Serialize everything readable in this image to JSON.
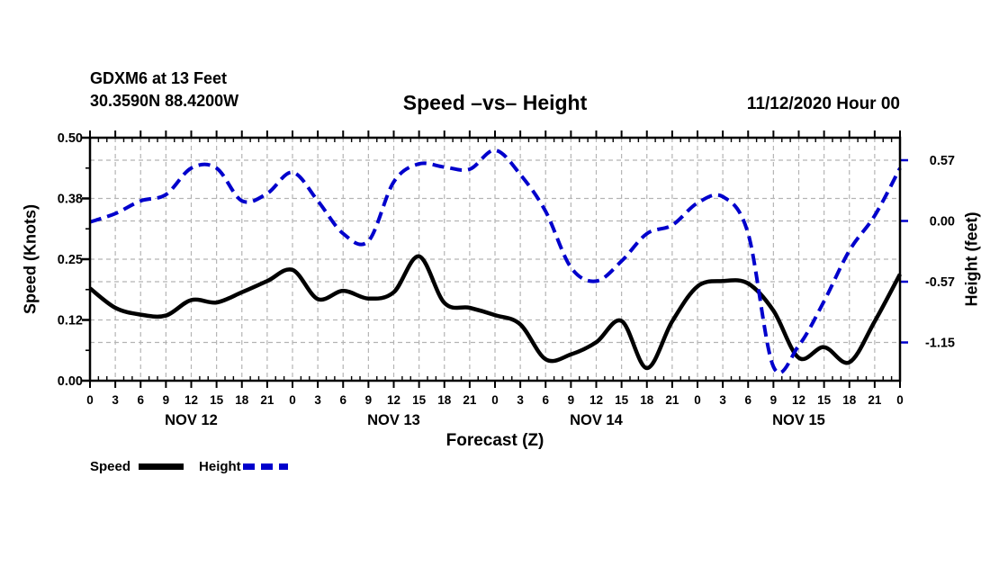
{
  "header": {
    "station_line1": "GDXM6 at 13 Feet",
    "station_line2": "30.3590N 88.4200W",
    "title": "Speed –vs– Height",
    "datetime": "11/12/2020 Hour 00"
  },
  "colors": {
    "speed_line": "#000000",
    "height_line": "#0000cc",
    "gridline": "#b4b4b4",
    "axis": "#000000"
  },
  "chart_data": {
    "type": "line",
    "title": "Speed –vs– Height",
    "x_label": "Forecast (Z)",
    "xlim": [
      0,
      96
    ],
    "x_tick_step": 3,
    "x_minor_step": 1,
    "grid": true,
    "legend_position": "bottom-left",
    "x_hours": [
      0,
      3,
      6,
      9,
      12,
      15,
      18,
      21,
      24,
      27,
      30,
      33,
      36,
      39,
      42,
      45,
      48,
      51,
      54,
      57,
      60,
      63,
      66,
      69,
      72,
      75,
      78,
      81,
      84,
      87,
      90,
      93,
      96
    ],
    "x_tick_labels": [
      "0",
      "3",
      "6",
      "9",
      "12",
      "15",
      "18",
      "21",
      "0",
      "3",
      "6",
      "9",
      "12",
      "15",
      "18",
      "21",
      "0",
      "3",
      "6",
      "9",
      "12",
      "15",
      "18",
      "21",
      "0",
      "3",
      "6",
      "9",
      "12",
      "15",
      "18",
      "21",
      "0"
    ],
    "day_labels": [
      {
        "text": "NOV 12",
        "hour": 12
      },
      {
        "text": "NOV 13",
        "hour": 36
      },
      {
        "text": "NOV 14",
        "hour": 60
      },
      {
        "text": "NOV 15",
        "hour": 84
      }
    ],
    "left_axis": {
      "label": "Speed (Knots)",
      "ylim": [
        0,
        0.5
      ],
      "tick_values": [
        0.5,
        0.375,
        0.25,
        0.125,
        0
      ],
      "tick_labels": [
        "0.50",
        "0.38",
        "0.25",
        "0.12",
        "0.00"
      ],
      "minor_tick_values": [
        0.4375,
        0.3125,
        0.1875,
        0.0625
      ],
      "gridline_values": [
        0.375,
        0.25,
        0.125
      ]
    },
    "right_axis": {
      "label": "Height (feet)",
      "ylim": [
        -1.512,
        0.788
      ],
      "tick_values": [
        0.575,
        0,
        -0.575,
        -1.15
      ],
      "tick_labels": [
        "0.57",
        "0.00",
        "-0.57",
        "-1.15"
      ],
      "tick_color": "#0000cc"
    },
    "series": [
      {
        "name": "Speed",
        "axis": "left",
        "unit": "Knots",
        "color": "#000000",
        "line_style": "solid",
        "values": [
          0.19,
          0.15,
          0.136,
          0.134,
          0.166,
          0.161,
          0.182,
          0.205,
          0.228,
          0.168,
          0.185,
          0.169,
          0.182,
          0.256,
          0.16,
          0.15,
          0.135,
          0.116,
          0.044,
          0.054,
          0.079,
          0.123,
          0.026,
          0.122,
          0.194,
          0.205,
          0.2,
          0.144,
          0.047,
          0.069,
          0.038,
          0.122,
          0.219
        ]
      },
      {
        "name": "Height",
        "axis": "right",
        "unit": "feet",
        "color": "#0000cc",
        "line_style": "dashed",
        "values": [
          -0.01,
          0.07,
          0.19,
          0.25,
          0.5,
          0.5,
          0.19,
          0.26,
          0.46,
          0.19,
          -0.12,
          -0.19,
          0.37,
          0.54,
          0.51,
          0.49,
          0.67,
          0.44,
          0.09,
          -0.44,
          -0.57,
          -0.38,
          -0.12,
          -0.04,
          0.17,
          0.23,
          -0.12,
          -1.38,
          -1.18,
          -0.76,
          -0.28,
          0.05,
          0.5
        ]
      }
    ]
  }
}
